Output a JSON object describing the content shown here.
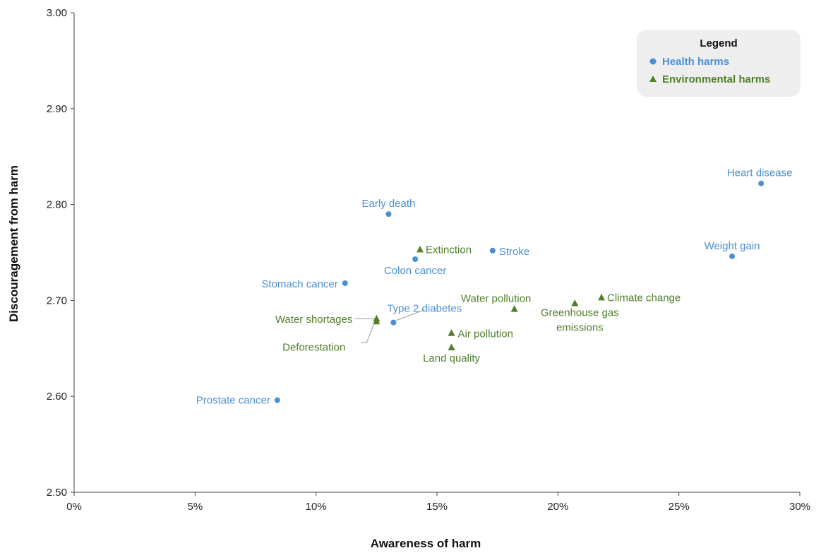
{
  "chart_data": {
    "type": "scatter",
    "title": "",
    "xlabel": "Awareness of harm",
    "ylabel": "Discouragement from harm",
    "xlim": [
      0,
      0.3
    ],
    "ylim": [
      2.5,
      3.0
    ],
    "x_ticks": [
      "0%",
      "5%",
      "10%",
      "15%",
      "20%",
      "25%",
      "30%"
    ],
    "y_ticks": [
      "2.50",
      "2.60",
      "2.70",
      "2.80",
      "2.90",
      "3.00"
    ],
    "grid": false,
    "legend": {
      "title": "Legend",
      "position": "top-right",
      "entries": [
        "Health harms",
        "Environmental harms"
      ]
    },
    "colors": {
      "health": "#4a8fd4",
      "environmental": "#4f7f2a",
      "leader": "#999999",
      "legend_bg": "#eeeeee"
    },
    "series": [
      {
        "name": "Health harms",
        "marker": "circle",
        "points": [
          {
            "label": "Heart disease",
            "x": 0.284,
            "y": 2.822
          },
          {
            "label": "Weight gain",
            "x": 0.272,
            "y": 2.746
          },
          {
            "label": "Early death",
            "x": 0.13,
            "y": 2.79
          },
          {
            "label": "Stroke",
            "x": 0.173,
            "y": 2.752
          },
          {
            "label": "Colon cancer",
            "x": 0.141,
            "y": 2.743
          },
          {
            "label": "Stomach cancer",
            "x": 0.112,
            "y": 2.718
          },
          {
            "label": "Type 2 diabetes",
            "x": 0.132,
            "y": 2.677
          },
          {
            "label": "Prostate cancer",
            "x": 0.084,
            "y": 2.596
          }
        ]
      },
      {
        "name": "Environmental harms",
        "marker": "triangle",
        "points": [
          {
            "label": "Extinction",
            "x": 0.143,
            "y": 2.753
          },
          {
            "label": "Climate change",
            "x": 0.218,
            "y": 2.703
          },
          {
            "label": "Greenhouse gas emissions",
            "x": 0.207,
            "y": 2.697
          },
          {
            "label": "Water pollution",
            "x": 0.182,
            "y": 2.691
          },
          {
            "label": "Air pollution",
            "x": 0.156,
            "y": 2.666
          },
          {
            "label": "Land quality",
            "x": 0.156,
            "y": 2.651
          },
          {
            "label": "Water shortages",
            "x": 0.125,
            "y": 2.681
          },
          {
            "label": "Deforestation",
            "x": 0.125,
            "y": 2.678
          }
        ]
      }
    ]
  }
}
